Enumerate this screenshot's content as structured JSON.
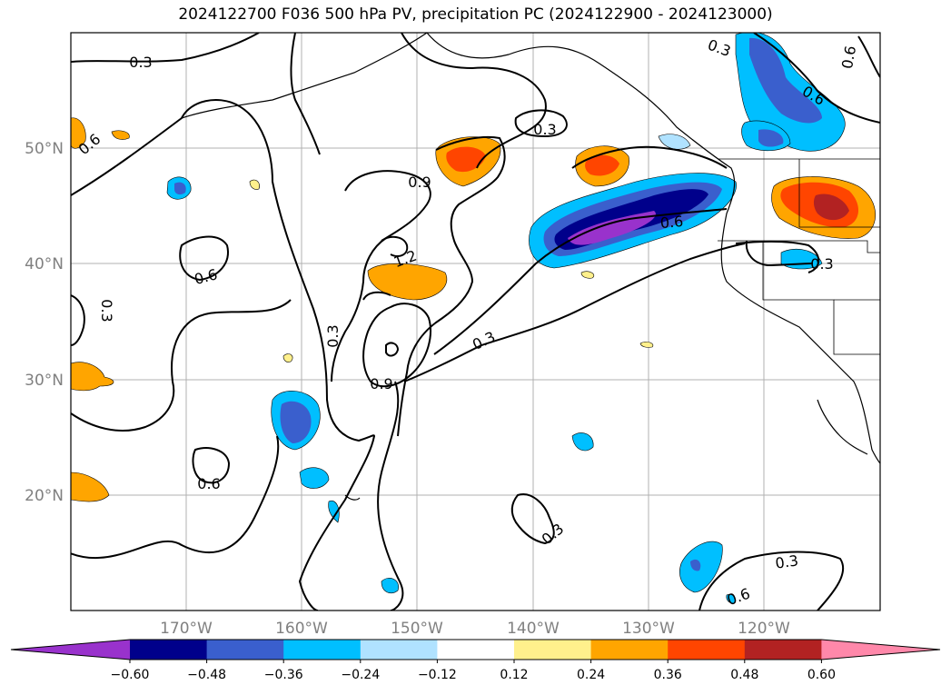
{
  "title": "2024122700 F036 500 hPa PV, precipitation PC (2024122900 - 2024123000)",
  "map": {
    "lat_labels": [
      "50°N",
      "40°N",
      "30°N",
      "20°N"
    ],
    "lon_labels": [
      "170°W",
      "160°W",
      "150°W",
      "140°W",
      "130°W",
      "120°W"
    ],
    "contour_labels": [
      "0.3",
      "0.3",
      "0.3",
      "0.3",
      "0.3",
      "0.3",
      "0.3",
      "0.3",
      "0.6",
      "0.6",
      "0.6",
      "0.6",
      "0.6",
      "0.6",
      "0.6",
      "0.9",
      "0.9",
      "1.2"
    ]
  },
  "colorbar": {
    "colors": [
      "#9932cc",
      "#00008b",
      "#3a5fcd",
      "#00bfff",
      "#b0e2ff",
      "#ffffff",
      "#fff08c",
      "#ffa500",
      "#ff4500",
      "#b22222",
      "#ff88aa"
    ],
    "tick_labels": [
      "−0.60",
      "−0.48",
      "−0.36",
      "−0.24",
      "−0.12",
      "0.12",
      "0.24",
      "0.36",
      "0.48",
      "0.60"
    ]
  }
}
